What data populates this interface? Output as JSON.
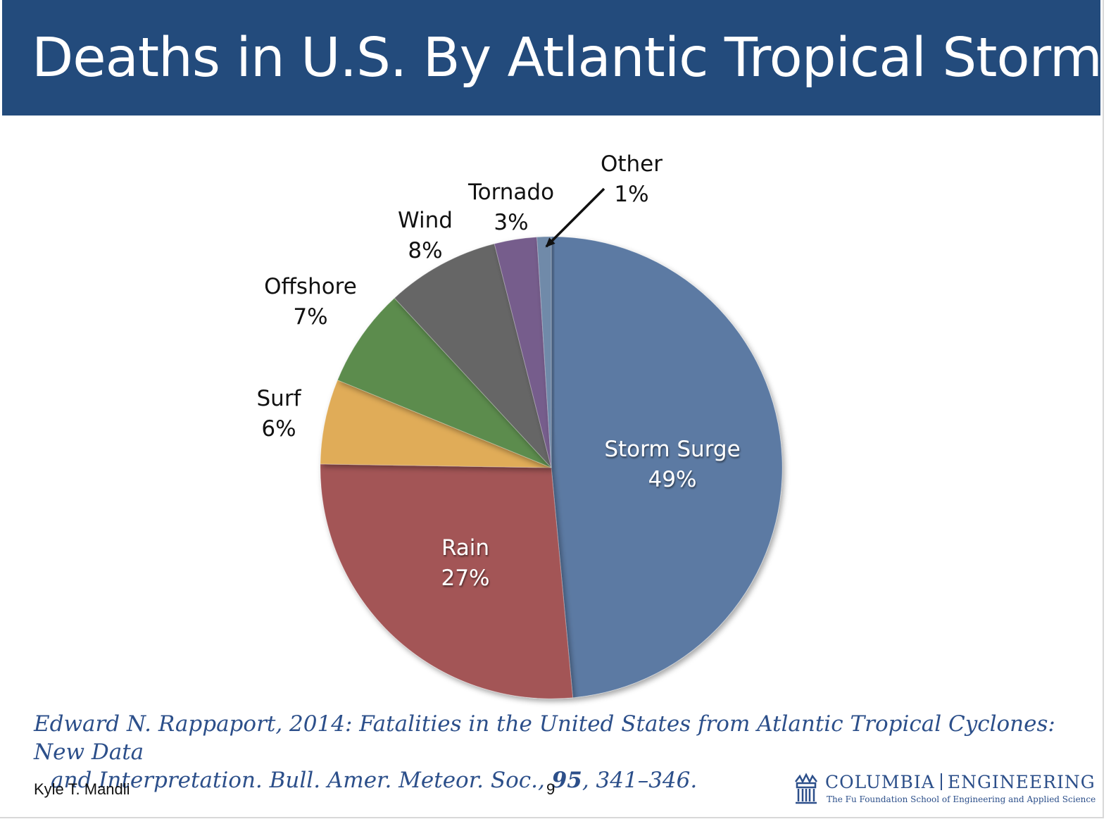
{
  "slide": {
    "title": "Deaths in U.S. By Atlantic Tropical Storms",
    "citation_line1": "Edward N. Rappaport, 2014: Fatalities in the United States from Atlantic Tropical Cyclones: New Data",
    "citation_line2_pre": "and Interpretation. Bull. Amer. Meteor. Soc., ",
    "citation_volume": "95",
    "citation_line2_post": ", 341–346.",
    "author": "Kyle T. Mandli",
    "page_number": "9",
    "logo_left": "COLUMBIA",
    "logo_right": "ENGINEERING",
    "logo_sub": "The Fu Foundation School of Engineering and Applied Science"
  },
  "chart_data": {
    "type": "pie",
    "title": "",
    "slices": [
      {
        "label": "Storm Surge",
        "value": 49,
        "display": "49%",
        "color": "#5b7aa3"
      },
      {
        "label": "Rain",
        "value": 27,
        "display": "27%",
        "color": "#a35457"
      },
      {
        "label": "Surf",
        "value": 6,
        "display": "6%",
        "color": "#e0ac58"
      },
      {
        "label": "Offshore",
        "value": 7,
        "display": "7%",
        "color": "#5c8c4e"
      },
      {
        "label": "Wind",
        "value": 8,
        "display": "8%",
        "color": "#666666"
      },
      {
        "label": "Tornado",
        "value": 3,
        "display": "3%",
        "color": "#765d8c"
      },
      {
        "label": "Other",
        "value": 1,
        "display": "1%",
        "color": "#6f8aa9"
      }
    ],
    "start": "12 o'clock",
    "direction": "clockwise",
    "legend": "none",
    "callout": "Other"
  }
}
